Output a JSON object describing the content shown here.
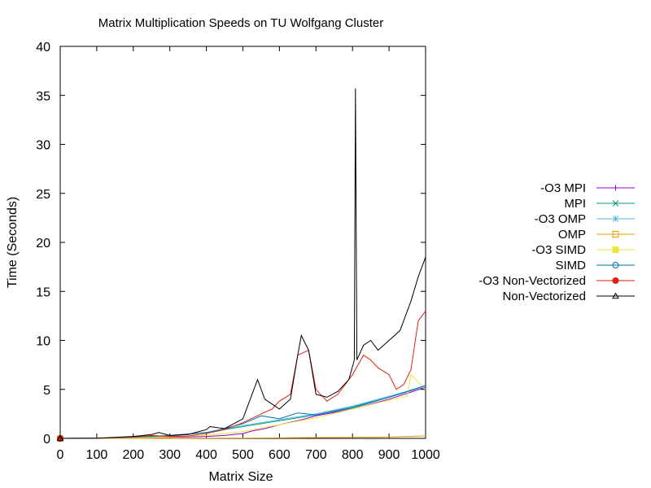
{
  "chart_data": {
    "type": "line",
    "title": "Matrix Multiplication Speeds on TU Wolfgang Cluster",
    "xlabel": "Matrix Size",
    "ylabel": "Time (Seconds)",
    "xlim": [
      0,
      1000
    ],
    "ylim": [
      0,
      40
    ],
    "xticks": [
      "0",
      "100",
      "200",
      "300",
      "400",
      "500",
      "600",
      "700",
      "800",
      "900",
      "1000"
    ],
    "yticks": [
      "0",
      "5",
      "10",
      "15",
      "20",
      "25",
      "30",
      "35",
      "40"
    ],
    "grid": false,
    "legend_position": "right",
    "series": [
      {
        "name": "-O3 MPI",
        "color": "#9400d3",
        "marker": "plus",
        "x": [
          0,
          100,
          200,
          300,
          400,
          450,
          500,
          530,
          560,
          600,
          650,
          700,
          800,
          900,
          1000
        ],
        "y": [
          0,
          0.01,
          0.05,
          0.1,
          0.2,
          0.3,
          0.5,
          0.8,
          1.0,
          1.4,
          1.8,
          2.3,
          3.0,
          4.0,
          5.2
        ]
      },
      {
        "name": "MPI",
        "color": "#009e73",
        "marker": "x",
        "x": [
          0,
          100,
          200,
          300,
          400,
          500,
          600,
          700,
          800,
          900,
          1000
        ],
        "y": [
          0,
          0.02,
          0.1,
          0.25,
          0.6,
          1.2,
          1.8,
          2.4,
          3.2,
          4.2,
          5.3
        ]
      },
      {
        "name": "-O3 OMP",
        "color": "#56b4e9",
        "marker": "star",
        "x": [
          0,
          100,
          200,
          300,
          400,
          500,
          600,
          700,
          800,
          900,
          1000
        ],
        "y": [
          0,
          0.02,
          0.1,
          0.3,
          0.6,
          1.3,
          1.9,
          2.5,
          3.3,
          4.3,
          5.3
        ]
      },
      {
        "name": "OMP",
        "color": "#e69f00",
        "marker": "square",
        "x": [
          0,
          100,
          200,
          300,
          400,
          500,
          600,
          700,
          800,
          900,
          1000
        ],
        "y": [
          0,
          0,
          0,
          0.01,
          0.02,
          0.03,
          0.05,
          0.08,
          0.1,
          0.15,
          0.25
        ]
      },
      {
        "name": "-O3 SIMD",
        "color": "#f0e442",
        "marker": "filled-square",
        "x": [
          0,
          100,
          200,
          300,
          400,
          500,
          600,
          700,
          800,
          900,
          950,
          960,
          1000
        ],
        "y": [
          0,
          0.01,
          0.05,
          0.15,
          0.3,
          0.7,
          1.4,
          2.1,
          3.0,
          3.9,
          4.3,
          6.5,
          5.0
        ]
      },
      {
        "name": "SIMD",
        "color": "#0072b2",
        "marker": "circle",
        "x": [
          0,
          100,
          200,
          300,
          400,
          450,
          500,
          550,
          600,
          650,
          700,
          800,
          900,
          1000
        ],
        "y": [
          0,
          0.02,
          0.1,
          0.3,
          0.6,
          1.0,
          1.5,
          2.3,
          2.0,
          2.6,
          2.4,
          3.1,
          4.2,
          5.4
        ]
      },
      {
        "name": "-O3 Non-Vectorized",
        "color": "#e51e10",
        "marker": "filled-circle",
        "x": [
          0,
          100,
          200,
          250,
          300,
          350,
          400,
          450,
          500,
          550,
          580,
          600,
          630,
          650,
          680,
          700,
          730,
          760,
          800,
          830,
          850,
          870,
          900,
          920,
          940,
          960,
          980,
          1000
        ],
        "y": [
          0,
          0.02,
          0.15,
          0.3,
          0.2,
          0.25,
          0.5,
          0.9,
          1.6,
          2.5,
          3.0,
          3.8,
          4.5,
          8.5,
          9.0,
          5.0,
          3.8,
          4.5,
          6.5,
          8.5,
          8.0,
          7.2,
          6.5,
          5.0,
          5.5,
          7.0,
          12.0,
          13.0
        ]
      },
      {
        "name": "Non-Vectorized",
        "color": "#000000",
        "marker": "triangle",
        "x": [
          0,
          100,
          200,
          250,
          270,
          300,
          350,
          400,
          410,
          450,
          500,
          520,
          540,
          560,
          580,
          600,
          630,
          650,
          660,
          680,
          700,
          730,
          760,
          790,
          805,
          808,
          812,
          830,
          850,
          870,
          900,
          930,
          960,
          980,
          1000
        ],
        "y": [
          0,
          0.02,
          0.2,
          0.4,
          0.6,
          0.3,
          0.4,
          0.9,
          1.2,
          1.0,
          2.0,
          4.0,
          6.0,
          4.0,
          3.5,
          3.0,
          4.0,
          8.5,
          10.5,
          9.0,
          4.5,
          4.2,
          4.8,
          6.0,
          8.0,
          35.7,
          8.0,
          9.5,
          10.0,
          9.0,
          10.0,
          11.0,
          14.0,
          16.5,
          18.5
        ]
      }
    ]
  }
}
